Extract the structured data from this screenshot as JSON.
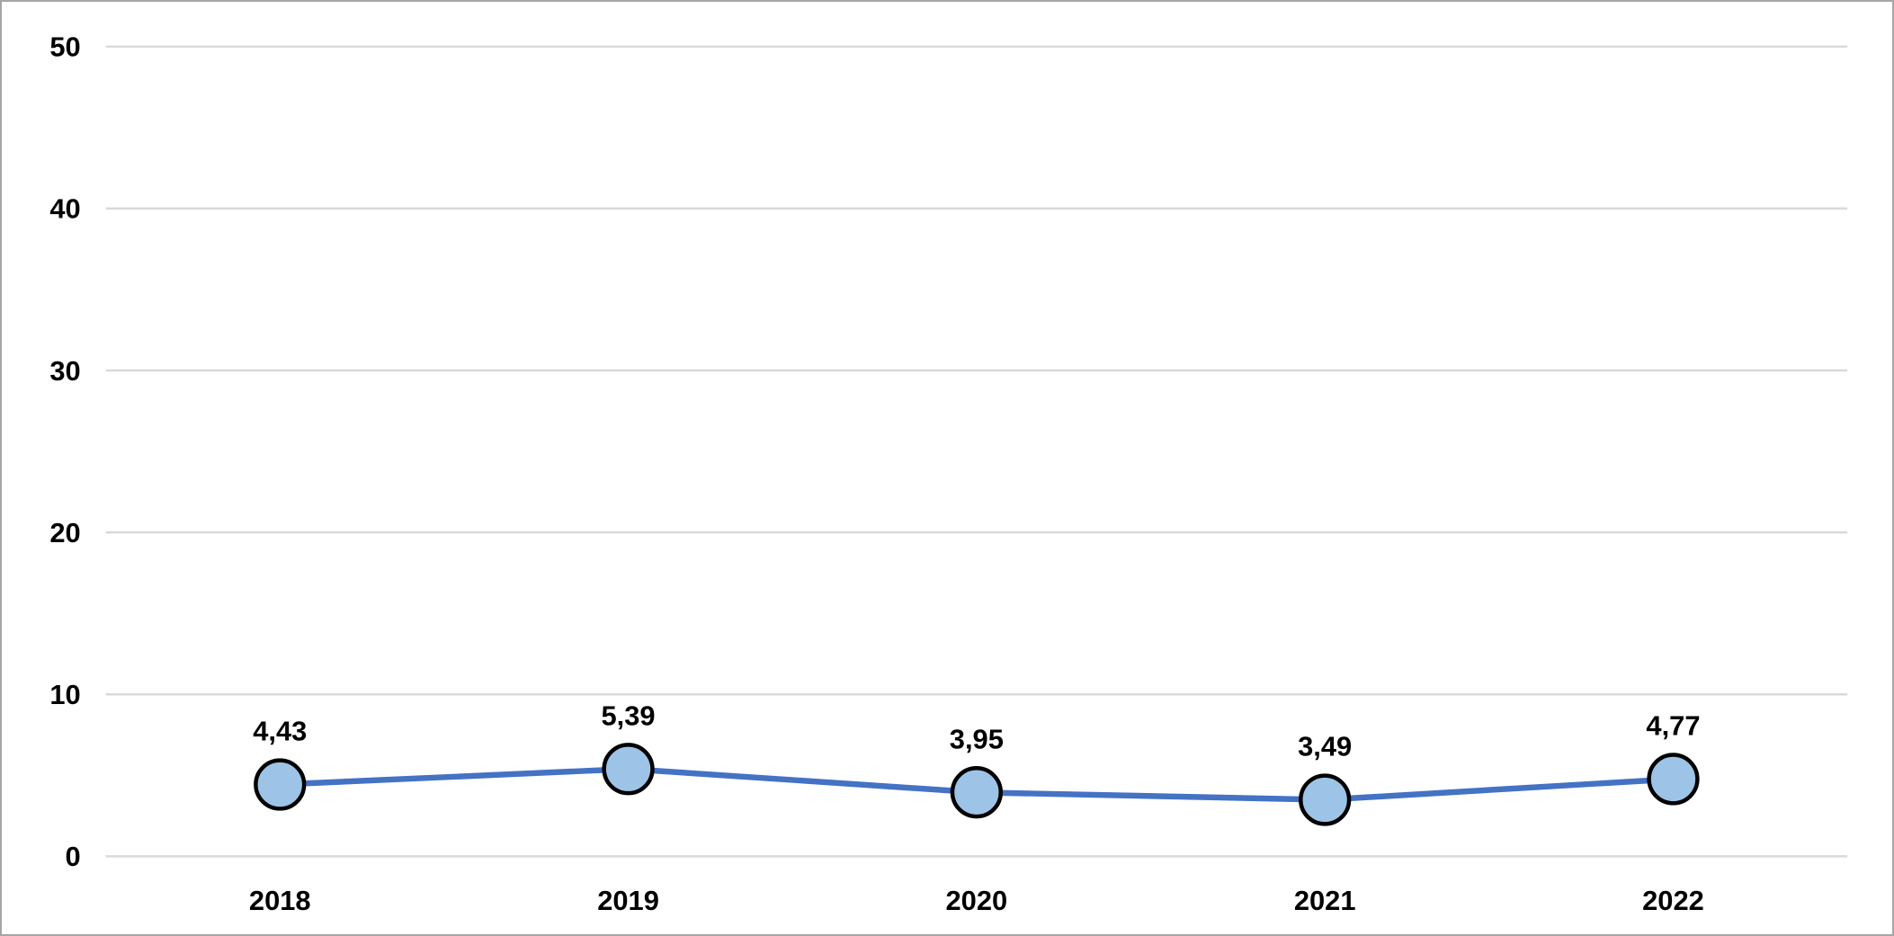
{
  "chart_data": {
    "type": "line",
    "title": "",
    "xlabel": "",
    "ylabel": "",
    "categories": [
      "2018",
      "2019",
      "2020",
      "2021",
      "2022"
    ],
    "values": [
      4.43,
      5.39,
      3.95,
      3.49,
      4.77
    ],
    "data_labels": [
      "4,43",
      "5,39",
      "3,95",
      "3,49",
      "4,77"
    ],
    "ylim": [
      0,
      50
    ],
    "yticks": [
      0,
      10,
      20,
      30,
      40,
      50
    ],
    "ytick_labels": [
      "0",
      "10",
      "20",
      "30",
      "40",
      "50"
    ],
    "grid": "horizontal",
    "legend": "none",
    "colors": {
      "line": "#4472C4",
      "marker_fill": "#9DC3E6",
      "marker_stroke": "#000000",
      "gridline": "#D9D9D9",
      "axis_text": "#000000",
      "background": "#FFFFFF",
      "frame_border": "#A6A6A6"
    }
  }
}
